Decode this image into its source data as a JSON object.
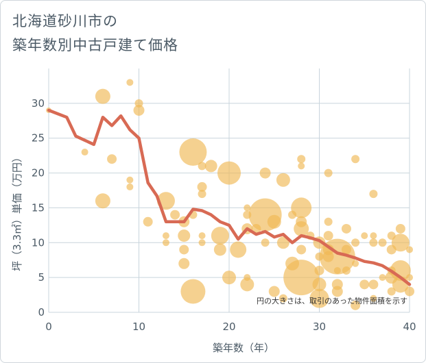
{
  "title_line1": "北海道砂川市の",
  "title_line2": "築年数別中古戸建て価格",
  "colors": {
    "bubble": "#f0b955",
    "line": "#d86a54",
    "grid": "#c8d4dc",
    "text": "#4b5a66"
  },
  "chart_data": {
    "type": "scatter",
    "title": "北海道砂川市の\n築年数別中古戸建て価格",
    "xlabel": "築年数（年）",
    "ylabel": "坪（3.3㎡）単価（万円）",
    "xlim": [
      0,
      40
    ],
    "ylim": [
      0,
      35
    ],
    "xticks": [
      0,
      10,
      20,
      30,
      40
    ],
    "yticks": [
      0,
      5,
      10,
      15,
      20,
      25,
      30
    ],
    "grid": true,
    "note": "円の大きさは、取引のあった物件面積を示す",
    "series": [
      {
        "type": "bubble",
        "points": [
          {
            "x": 0,
            "y": 29,
            "s": 4
          },
          {
            "x": 4,
            "y": 23,
            "s": 5
          },
          {
            "x": 6,
            "y": 31,
            "s": 11
          },
          {
            "x": 6,
            "y": 16,
            "s": 11
          },
          {
            "x": 7,
            "y": 22,
            "s": 7
          },
          {
            "x": 9,
            "y": 33,
            "s": 5
          },
          {
            "x": 9,
            "y": 19,
            "s": 5
          },
          {
            "x": 9,
            "y": 18,
            "s": 5
          },
          {
            "x": 10,
            "y": 30,
            "s": 6
          },
          {
            "x": 10,
            "y": 29,
            "s": 8
          },
          {
            "x": 11,
            "y": 13,
            "s": 7
          },
          {
            "x": 13,
            "y": 16,
            "s": 13
          },
          {
            "x": 13,
            "y": 11,
            "s": 5
          },
          {
            "x": 13,
            "y": 10,
            "s": 5
          },
          {
            "x": 14,
            "y": 14,
            "s": 7
          },
          {
            "x": 15,
            "y": 13,
            "s": 8
          },
          {
            "x": 15,
            "y": 11,
            "s": 9
          },
          {
            "x": 15,
            "y": 9,
            "s": 7
          },
          {
            "x": 15,
            "y": 7,
            "s": 8
          },
          {
            "x": 16,
            "y": 23,
            "s": 20
          },
          {
            "x": 16,
            "y": 3,
            "s": 18
          },
          {
            "x": 16,
            "y": 14,
            "s": 6
          },
          {
            "x": 17,
            "y": 21,
            "s": 6
          },
          {
            "x": 17,
            "y": 18,
            "s": 7
          },
          {
            "x": 17,
            "y": 17,
            "s": 6
          },
          {
            "x": 17,
            "y": 11,
            "s": 5
          },
          {
            "x": 17,
            "y": 10,
            "s": 5
          },
          {
            "x": 18,
            "y": 21,
            "s": 9
          },
          {
            "x": 19,
            "y": 11,
            "s": 13
          },
          {
            "x": 19,
            "y": 9,
            "s": 9
          },
          {
            "x": 20,
            "y": 20,
            "s": 17
          },
          {
            "x": 20,
            "y": 5,
            "s": 10
          },
          {
            "x": 21,
            "y": 9,
            "s": 12
          },
          {
            "x": 22,
            "y": 15,
            "s": 5
          },
          {
            "x": 22,
            "y": 14,
            "s": 6
          },
          {
            "x": 22,
            "y": 12,
            "s": 8
          },
          {
            "x": 22,
            "y": 5,
            "s": 5
          },
          {
            "x": 22,
            "y": 4,
            "s": 10
          },
          {
            "x": 23,
            "y": 12,
            "s": 7
          },
          {
            "x": 24,
            "y": 20,
            "s": 8
          },
          {
            "x": 24,
            "y": 14,
            "s": 24
          },
          {
            "x": 24,
            "y": 10,
            "s": 6
          },
          {
            "x": 25,
            "y": 13,
            "s": 10
          },
          {
            "x": 25,
            "y": 3,
            "s": 8
          },
          {
            "x": 26,
            "y": 19,
            "s": 10
          },
          {
            "x": 26,
            "y": 10,
            "s": 9
          },
          {
            "x": 26,
            "y": 2,
            "s": 6
          },
          {
            "x": 27,
            "y": 14,
            "s": 6
          },
          {
            "x": 27,
            "y": 7,
            "s": 10
          },
          {
            "x": 28,
            "y": 22,
            "s": 6
          },
          {
            "x": 28,
            "y": 21,
            "s": 5
          },
          {
            "x": 28,
            "y": 15,
            "s": 15
          },
          {
            "x": 28,
            "y": 13,
            "s": 8
          },
          {
            "x": 28,
            "y": 12,
            "s": 11
          },
          {
            "x": 28,
            "y": 9,
            "s": 7
          },
          {
            "x": 28,
            "y": 5,
            "s": 26
          },
          {
            "x": 29,
            "y": 11,
            "s": 6
          },
          {
            "x": 30,
            "y": 10,
            "s": 9
          },
          {
            "x": 30,
            "y": 8,
            "s": 6
          },
          {
            "x": 30,
            "y": 6,
            "s": 7
          },
          {
            "x": 30,
            "y": 4,
            "s": 10
          },
          {
            "x": 30,
            "y": 2,
            "s": 14
          },
          {
            "x": 31,
            "y": 20,
            "s": 6
          },
          {
            "x": 31,
            "y": 13,
            "s": 6
          },
          {
            "x": 31,
            "y": 11,
            "s": 7
          },
          {
            "x": 31,
            "y": 9,
            "s": 8
          },
          {
            "x": 31,
            "y": 8,
            "s": 8
          },
          {
            "x": 32,
            "y": 8,
            "s": 26
          },
          {
            "x": 32,
            "y": 6,
            "s": 5
          },
          {
            "x": 32,
            "y": 4,
            "s": 8
          },
          {
            "x": 32,
            "y": 3,
            "s": 8
          },
          {
            "x": 33,
            "y": 12,
            "s": 7
          },
          {
            "x": 33,
            "y": 9,
            "s": 7
          },
          {
            "x": 33,
            "y": 6,
            "s": 6
          },
          {
            "x": 34,
            "y": 22,
            "s": 6
          },
          {
            "x": 34,
            "y": 10,
            "s": 6
          },
          {
            "x": 34,
            "y": 7,
            "s": 5
          },
          {
            "x": 34,
            "y": 1,
            "s": 7
          },
          {
            "x": 35,
            "y": 11,
            "s": 5
          },
          {
            "x": 35,
            "y": 4,
            "s": 7
          },
          {
            "x": 36,
            "y": 17,
            "s": 6
          },
          {
            "x": 36,
            "y": 11,
            "s": 5
          },
          {
            "x": 36,
            "y": 10,
            "s": 6
          },
          {
            "x": 36,
            "y": 4,
            "s": 7
          },
          {
            "x": 36,
            "y": 2,
            "s": 5
          },
          {
            "x": 37,
            "y": 10,
            "s": 6
          },
          {
            "x": 37,
            "y": 5,
            "s": 5
          },
          {
            "x": 38,
            "y": 11,
            "s": 6
          },
          {
            "x": 38,
            "y": 9,
            "s": 7
          },
          {
            "x": 38,
            "y": 6,
            "s": 6
          },
          {
            "x": 38,
            "y": 5,
            "s": 9
          },
          {
            "x": 38,
            "y": 3,
            "s": 6
          },
          {
            "x": 39,
            "y": 12,
            "s": 7
          },
          {
            "x": 39,
            "y": 10,
            "s": 13
          },
          {
            "x": 39,
            "y": 6,
            "s": 15
          },
          {
            "x": 39,
            "y": 4,
            "s": 12
          },
          {
            "x": 40,
            "y": 9,
            "s": 5
          },
          {
            "x": 40,
            "y": 5,
            "s": 5
          },
          {
            "x": 40,
            "y": 3,
            "s": 7
          }
        ]
      },
      {
        "type": "line",
        "x": [
          0,
          1,
          2,
          3,
          4,
          5,
          6,
          7,
          8,
          9,
          10,
          11,
          12,
          13,
          14,
          15,
          16,
          17,
          18,
          19,
          20,
          21,
          22,
          23,
          24,
          25,
          26,
          27,
          28,
          29,
          30,
          31,
          32,
          33,
          34,
          35,
          36,
          37,
          38,
          39,
          40
        ],
        "y": [
          29,
          28.5,
          28,
          25.3,
          24.7,
          24.1,
          28,
          26.8,
          28.2,
          26.2,
          25,
          18.6,
          16.7,
          13,
          13,
          13,
          14.8,
          14.6,
          14,
          13,
          12.5,
          10.5,
          12,
          11.2,
          11.6,
          10.8,
          11.2,
          10,
          11,
          10.7,
          10.3,
          9.4,
          8.5,
          8.2,
          7.8,
          7.3,
          7.1,
          6.7,
          5.9,
          5,
          4
        ]
      }
    ]
  }
}
